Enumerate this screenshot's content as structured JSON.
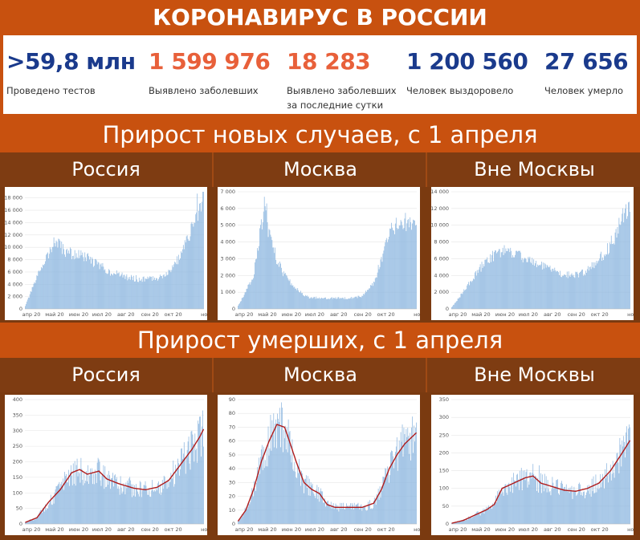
{
  "title": "КОРОНАВИРУС В РОССИИ",
  "stats": [
    {
      "value": ">59,8 млн",
      "label": "Проведено тестов",
      "color": "#1a3a8c"
    },
    {
      "value": "1 599 976",
      "label": "Выявлено заболевших",
      "color": "#e8603a"
    },
    {
      "value": "18 283",
      "label": "Выявлено заболевших\nза последние сутки",
      "color": "#e8603a"
    },
    {
      "value": "1 200 560",
      "label": "Человек выздоровело",
      "color": "#1a3a8c"
    },
    {
      "value": "27 656",
      "label": "Человек умерло",
      "color": "#1a3a8c"
    }
  ],
  "section_titles": {
    "cases": "Прирост новых случаев, с 1 апреля",
    "deaths": "Прирост умерших, с 1 апреля"
  },
  "region_labels": [
    "Россия",
    "Москва",
    "Вне Москвы"
  ],
  "colors": {
    "bar": "#8fb8e0",
    "line": "#b01c1c",
    "background": "#c8510f",
    "header": "#7e3c12"
  },
  "chart_data": [
    {
      "type": "bar",
      "title": "Россия",
      "metric": "new_cases",
      "x_labels": [
        "апр 20",
        "май 20",
        "июн 20",
        "июл 20",
        "авг 20",
        "сен 20",
        "окт 20",
        "ноя"
      ],
      "y_ticks": [
        "0",
        "2 000",
        "4 000",
        "6 000",
        "8 000",
        "10 000",
        "12 000",
        "14 000",
        "16 000",
        "18 000"
      ],
      "ylim": [
        0,
        19000
      ],
      "anchors": [
        [
          0,
          500
        ],
        [
          10,
          3500
        ],
        [
          25,
          8000
        ],
        [
          40,
          10800
        ],
        [
          50,
          9500
        ],
        [
          60,
          8900
        ],
        [
          75,
          8600
        ],
        [
          90,
          7500
        ],
        [
          110,
          6000
        ],
        [
          130,
          5200
        ],
        [
          150,
          4800
        ],
        [
          170,
          5000
        ],
        [
          185,
          6000
        ],
        [
          200,
          8500
        ],
        [
          210,
          11500
        ],
        [
          220,
          14500
        ],
        [
          225,
          16500
        ],
        [
          230,
          18000
        ]
      ],
      "peaks": [
        [
          37,
          11600
        ],
        [
          222,
          18700
        ],
        [
          229,
          19100
        ]
      ]
    },
    {
      "type": "bar",
      "title": "Москва",
      "metric": "new_cases",
      "x_labels": [
        "апр 20",
        "май 20",
        "июн 20",
        "июл 20",
        "авг 20",
        "сен 20",
        "окт 20",
        "ноя"
      ],
      "y_ticks": [
        "0",
        "1 000",
        "2 000",
        "3 000",
        "4 000",
        "5 000",
        "6 000",
        "7 000"
      ],
      "ylim": [
        0,
        7000
      ],
      "anchors": [
        [
          0,
          200
        ],
        [
          10,
          1000
        ],
        [
          20,
          2000
        ],
        [
          30,
          5000
        ],
        [
          35,
          5800
        ],
        [
          40,
          4500
        ],
        [
          50,
          3000
        ],
        [
          60,
          2000
        ],
        [
          75,
          1200
        ],
        [
          90,
          700
        ],
        [
          110,
          650
        ],
        [
          140,
          650
        ],
        [
          160,
          750
        ],
        [
          175,
          1500
        ],
        [
          185,
          3000
        ],
        [
          195,
          4500
        ],
        [
          205,
          5000
        ],
        [
          215,
          5200
        ],
        [
          230,
          5000
        ]
      ],
      "peaks": [
        [
          34,
          6700
        ],
        [
          37,
          6300
        ],
        [
          215,
          5400
        ],
        [
          227,
          5300
        ]
      ]
    },
    {
      "type": "bar",
      "title": "Вне Москвы",
      "metric": "new_cases",
      "x_labels": [
        "апр 20",
        "май 20",
        "июн 20",
        "июл 20",
        "авг 20",
        "сен 20",
        "окт 20",
        "ноя"
      ],
      "y_ticks": [
        "0",
        "2 000",
        "4 000",
        "6 000",
        "8 000",
        "10 000",
        "12 000",
        "14 000"
      ],
      "ylim": [
        0,
        14000
      ],
      "anchors": [
        [
          0,
          200
        ],
        [
          15,
          2000
        ],
        [
          30,
          4000
        ],
        [
          45,
          5800
        ],
        [
          60,
          6700
        ],
        [
          70,
          7000
        ],
        [
          85,
          6500
        ],
        [
          100,
          5800
        ],
        [
          120,
          5000
        ],
        [
          140,
          4300
        ],
        [
          155,
          4000
        ],
        [
          170,
          4300
        ],
        [
          185,
          5300
        ],
        [
          200,
          7000
        ],
        [
          210,
          8500
        ],
        [
          220,
          11000
        ],
        [
          230,
          12500
        ]
      ],
      "peaks": [
        [
          66,
          7300
        ],
        [
          229,
          12800
        ]
      ]
    },
    {
      "type": "bar",
      "title": "Россия",
      "metric": "deaths",
      "with_trend_line": true,
      "x_labels": [
        "апр 20",
        "май 20",
        "июн 20",
        "июл 20",
        "авг 20",
        "сен 20",
        "окт 20",
        "ноя"
      ],
      "y_ticks": [
        "0",
        "50",
        "100",
        "150",
        "200",
        "250",
        "300",
        "350",
        "400"
      ],
      "ylim": [
        0,
        400
      ],
      "anchors": [
        [
          0,
          5
        ],
        [
          15,
          20
        ],
        [
          30,
          70
        ],
        [
          45,
          110
        ],
        [
          60,
          165
        ],
        [
          70,
          175
        ],
        [
          80,
          160
        ],
        [
          95,
          170
        ],
        [
          105,
          145
        ],
        [
          120,
          130
        ],
        [
          140,
          115
        ],
        [
          155,
          110
        ],
        [
          170,
          118
        ],
        [
          185,
          140
        ],
        [
          200,
          190
        ],
        [
          215,
          240
        ],
        [
          225,
          280
        ],
        [
          230,
          305
        ]
      ],
      "peaks": [
        [
          67,
          210
        ],
        [
          225,
          345
        ],
        [
          229,
          365
        ]
      ]
    },
    {
      "type": "bar",
      "title": "Москва",
      "metric": "deaths",
      "with_trend_line": true,
      "x_labels": [
        "апр 20",
        "май 20",
        "июн 20",
        "июл 20",
        "авг 20",
        "сен 20",
        "окт 20",
        "ноя"
      ],
      "y_ticks": [
        "0",
        "10",
        "20",
        "30",
        "40",
        "50",
        "60",
        "70",
        "80",
        "90"
      ],
      "ylim": [
        0,
        90
      ],
      "anchors": [
        [
          0,
          2
        ],
        [
          10,
          10
        ],
        [
          20,
          25
        ],
        [
          30,
          45
        ],
        [
          40,
          60
        ],
        [
          50,
          72
        ],
        [
          60,
          70
        ],
        [
          65,
          62
        ],
        [
          75,
          45
        ],
        [
          85,
          30
        ],
        [
          95,
          25
        ],
        [
          105,
          22
        ],
        [
          115,
          14
        ],
        [
          125,
          12
        ],
        [
          140,
          12
        ],
        [
          160,
          12
        ],
        [
          175,
          15
        ],
        [
          185,
          25
        ],
        [
          195,
          40
        ],
        [
          205,
          50
        ],
        [
          215,
          58
        ],
        [
          230,
          66
        ]
      ],
      "peaks": [
        [
          46,
          80
        ],
        [
          212,
          72
        ]
      ]
    },
    {
      "type": "bar",
      "title": "Вне Москвы",
      "metric": "deaths",
      "with_trend_line": true,
      "x_labels": [
        "апр 20",
        "май 20",
        "июн 20",
        "июл 20",
        "авг 20",
        "сен 20",
        "окт 20",
        "ноя"
      ],
      "y_ticks": [
        "0",
        "50",
        "100",
        "150",
        "200",
        "250",
        "300",
        "350"
      ],
      "ylim": [
        0,
        350
      ],
      "anchors": [
        [
          0,
          2
        ],
        [
          15,
          10
        ],
        [
          30,
          25
        ],
        [
          45,
          40
        ],
        [
          55,
          55
        ],
        [
          65,
          100
        ],
        [
          80,
          115
        ],
        [
          95,
          130
        ],
        [
          105,
          135
        ],
        [
          115,
          115
        ],
        [
          130,
          105
        ],
        [
          145,
          95
        ],
        [
          160,
          92
        ],
        [
          175,
          100
        ],
        [
          190,
          115
        ],
        [
          205,
          150
        ],
        [
          220,
          200
        ],
        [
          230,
          235
        ]
      ],
      "peaks": [
        [
          113,
          165
        ],
        [
          226,
          275
        ],
        [
          229,
          280
        ]
      ]
    }
  ]
}
